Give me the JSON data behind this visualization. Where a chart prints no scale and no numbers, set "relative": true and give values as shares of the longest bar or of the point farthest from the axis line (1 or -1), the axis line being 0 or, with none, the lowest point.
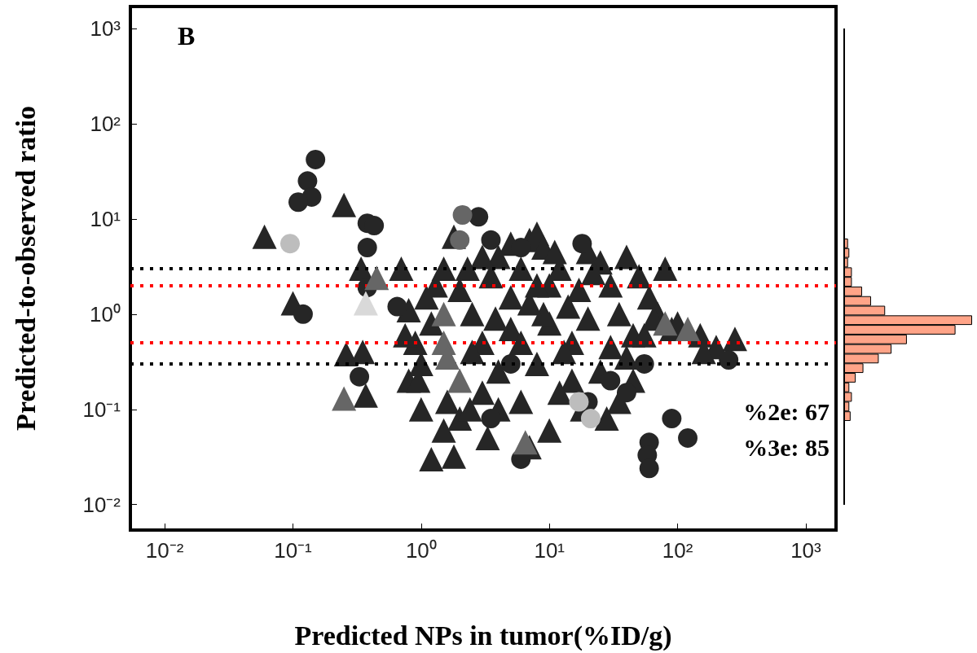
{
  "chart_data": [
    {
      "type": "scatter",
      "xlabel": "Predicted NPs in tumor(%ID/g)",
      "ylabel": "Predicted-to-observed ratio",
      "log": "xy",
      "xlim": [
        0.0054,
        1720
      ],
      "ylim": [
        0.0054,
        1700
      ],
      "xticks": [
        {
          "value": 0.01,
          "label": "10⁻²"
        },
        {
          "value": 0.1,
          "label": "10⁻¹"
        },
        {
          "value": 1,
          "label": "10⁰"
        },
        {
          "value": 10,
          "label": "10¹"
        },
        {
          "value": 100,
          "label": "10²"
        },
        {
          "value": 1000,
          "label": "10³"
        }
      ],
      "yticks": [
        {
          "value": 0.01,
          "label": "10⁻²"
        },
        {
          "value": 0.1,
          "label": "10⁻¹"
        },
        {
          "value": 1,
          "label": "10⁰"
        },
        {
          "value": 10,
          "label": "10¹"
        },
        {
          "value": 100,
          "label": "10²"
        },
        {
          "value": 1000,
          "label": "10³"
        }
      ],
      "annotations": [
        "B",
        "%2e: 67",
        "%3e: 85"
      ],
      "ref_lines": [
        {
          "axis": "y",
          "value": 3,
          "color": "#000000",
          "line_style": "dotted"
        },
        {
          "axis": "y",
          "value": 2,
          "color": "#ff0000",
          "line_style": "dotted"
        },
        {
          "axis": "y",
          "value": 0.5,
          "color": "#ff0000",
          "line_style": "dotted"
        },
        {
          "axis": "y",
          "value": 0.3,
          "color": "#000000",
          "line_style": "dotted"
        }
      ],
      "series": [
        {
          "color": "#262626",
          "marker": "triangle",
          "x": [
            0.06,
            0.1,
            0.25,
            0.26,
            0.37,
            0.34,
            0.7,
            1.8,
            1.0,
            1.2,
            1.8,
            0.9,
            0.8,
            1.1,
            1.3,
            2.3,
            2.5,
            3,
            3.5,
            4,
            5,
            5,
            6,
            7,
            8,
            9,
            10,
            10,
            12,
            14,
            15,
            20,
            25,
            30,
            35,
            40,
            45,
            50,
            60,
            70,
            90,
            100,
            150,
            200,
            280,
            160,
            3,
            4,
            2,
            1.5,
            7,
            10,
            18,
            25,
            15,
            8,
            6,
            12,
            4,
            2.5,
            1.2,
            20,
            30,
            40,
            55,
            2,
            3,
            5,
            6,
            9,
            11,
            13,
            17,
            22,
            8,
            1.5,
            3.8,
            7,
            0.95,
            1.6,
            2.4,
            3.3,
            1,
            0.75,
            0.8,
            0.35,
            35,
            28,
            45,
            65,
            80
          ],
          "values": [
            6.5,
            1.3,
            14,
            0.38,
            0.14,
            3,
            3,
            6.5,
            0.1,
            0.03,
            0.032,
            0.5,
            0.2,
            1.5,
            2,
            3,
            1,
            0.5,
            2.5,
            4,
            1.5,
            0.7,
            3,
            6,
            7,
            5,
            2,
            0.8,
            3,
            1.2,
            0.5,
            4.5,
            3.5,
            2,
            1,
            4,
            0.6,
            2.5,
            1.5,
            1,
            0.7,
            0.8,
            0.6,
            0.45,
            0.55,
            0.4,
            0.15,
            0.1,
            0.08,
            0.06,
            0.04,
            0.06,
            0.1,
            0.25,
            0.2,
            0.3,
            0.12,
            0.15,
            0.25,
            0.4,
            0.8,
            0.9,
            0.45,
            0.35,
            0.6,
            1.8,
            4,
            5.5,
            0.5,
            1,
            4.5,
            0.4,
            1.8,
            2.7,
            2,
            3,
            0.9,
            1.3,
            0.2,
            0.12,
            0.1,
            0.05,
            0.3,
            0.6,
            1.1,
            0.4,
            0.12,
            0.08,
            0.2,
            0.9,
            3
          ]
        },
        {
          "color": "#262626",
          "marker": "circle",
          "x": [
            0.15,
            0.13,
            0.14,
            0.11,
            0.38,
            0.43,
            0.38,
            0.38,
            0.12,
            0.33,
            0.65,
            2.8,
            3.5,
            6,
            18,
            6,
            60,
            58,
            60,
            90,
            120,
            250,
            3.5,
            55,
            20,
            5,
            30,
            40
          ],
          "values": [
            42,
            25,
            17,
            15,
            9,
            8.5,
            5,
            1.9,
            1,
            0.22,
            1.2,
            10.5,
            6,
            5,
            5.5,
            0.03,
            0.045,
            0.033,
            0.024,
            0.08,
            0.05,
            0.33,
            0.08,
            0.3,
            0.12,
            0.3,
            0.2,
            0.15
          ]
        },
        {
          "color": "#666666",
          "marker": "triangle",
          "x": [
            0.45,
            0.25,
            1.5,
            1.5,
            1.6,
            80,
            120,
            6.5,
            2
          ],
          "values": [
            2.4,
            0.13,
            1,
            0.5,
            0.35,
            0.8,
            0.7,
            0.045,
            0.2
          ]
        },
        {
          "color": "#666666",
          "marker": "circle",
          "x": [
            2.1,
            2.0
          ],
          "values": [
            11,
            6
          ]
        },
        {
          "color": "#bdbdbd",
          "marker": "circle",
          "x": [
            0.095,
            17,
            21
          ],
          "values": [
            5.5,
            0.12,
            0.08
          ]
        },
        {
          "color": "#d9d9d9",
          "marker": "triangle",
          "x": [
            0.37
          ],
          "values": [
            1.3
          ]
        }
      ]
    },
    {
      "type": "bar",
      "orientation": "horizontal",
      "relative": true,
      "color": "#ffa488",
      "categories": [
        null,
        null,
        null,
        null,
        null,
        null,
        null,
        null,
        null,
        null,
        null,
        null,
        null,
        null,
        null,
        null,
        null,
        null,
        null
      ],
      "values": [
        0.03,
        0.04,
        0.03,
        0.06,
        0.06,
        0.14,
        0.21,
        0.32,
        1,
        0.87,
        0.49,
        0.37,
        0.27,
        0.15,
        0.09,
        0.04,
        0.06,
        0.04,
        0.05
      ]
    }
  ]
}
